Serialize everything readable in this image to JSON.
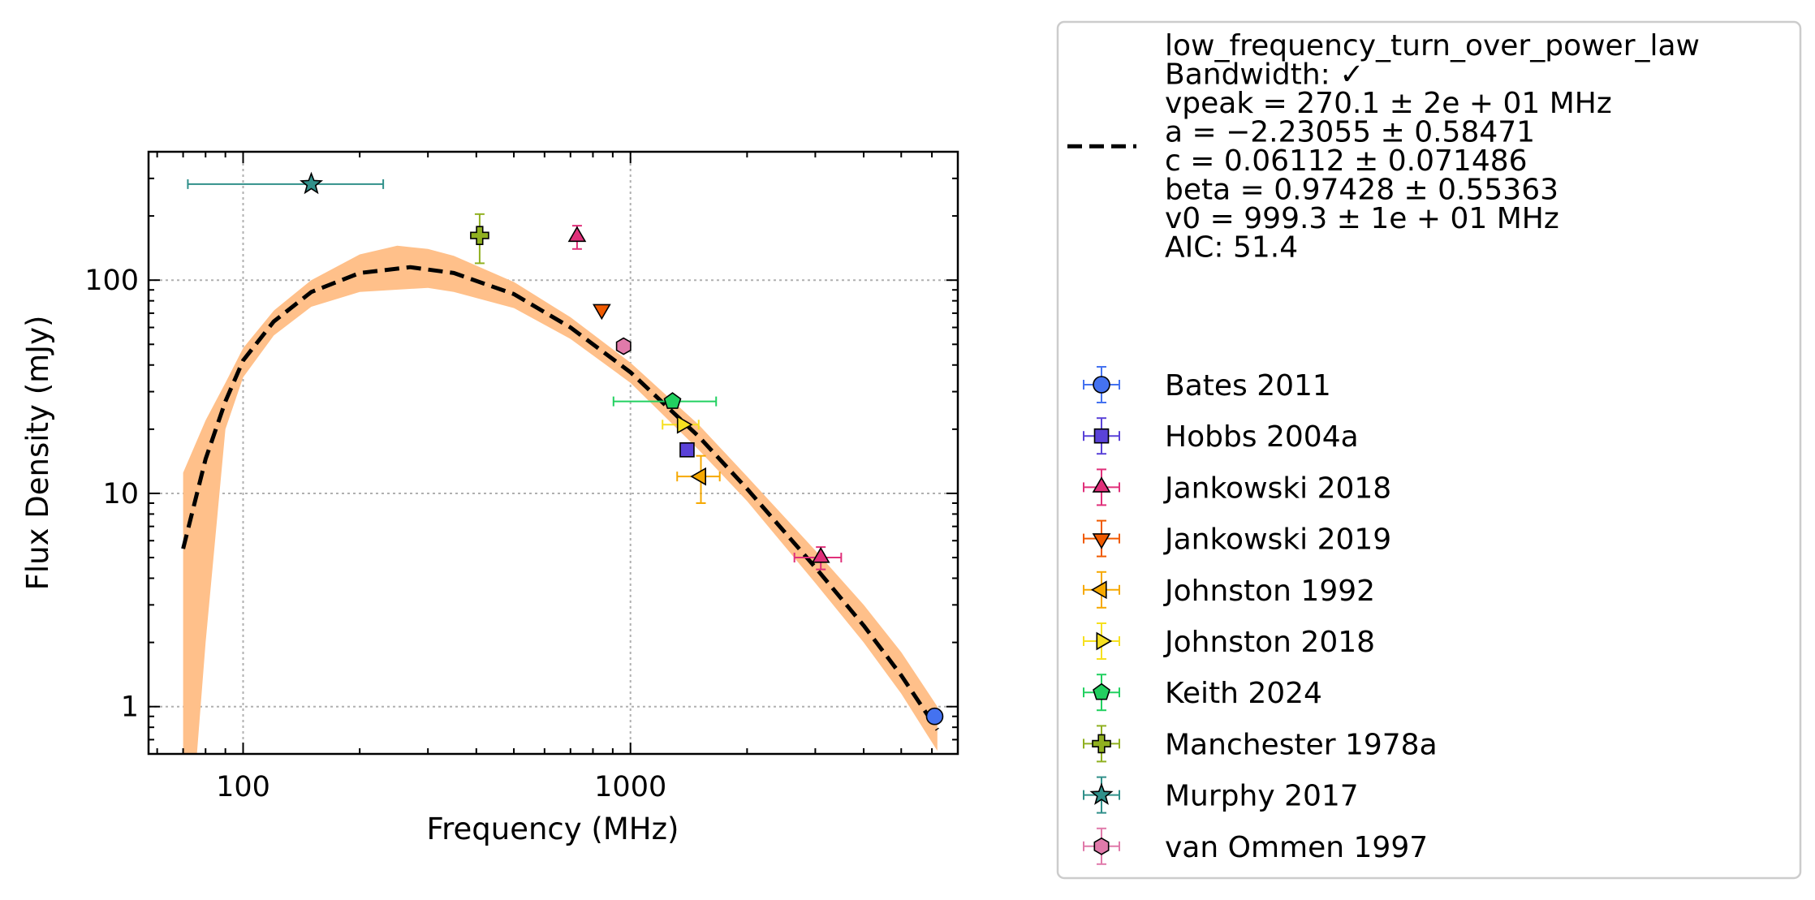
{
  "chart_data": {
    "type": "scatter",
    "xlabel": "Frequency (MHz)",
    "ylabel": "Flux Density (mJy)",
    "xscale": "log",
    "yscale": "log",
    "xlim": [
      57,
      7000
    ],
    "ylim": [
      0.6,
      400
    ],
    "grid": true,
    "legend_placement": "outside-right",
    "x_ticks": [
      {
        "value": 100,
        "label": "100"
      },
      {
        "value": 1000,
        "label": "1000"
      }
    ],
    "y_ticks": [
      {
        "value": 1,
        "label": "1"
      },
      {
        "value": 10,
        "label": "10"
      },
      {
        "value": 100,
        "label": "100"
      }
    ],
    "fit": {
      "model": "low_frequency_turn_over_power_law",
      "label_lines": [
        "low_frequency_turn_over_power_law",
        "Bandwidth: ✓",
        "vpeak = 270.1 ± 2e + 01 MHz",
        "a = −2.23055 ± 0.58471",
        "c = 0.06112 ± 0.071486",
        "beta = 0.97428 ± 0.55363",
        "v0 = 999.3 ± 1e + 01 MHz",
        "AIC: 51.4"
      ],
      "line_color": "#000000",
      "band_color": "#ffc08a",
      "curve": {
        "x": [
          70,
          80,
          90,
          100,
          120,
          150,
          200,
          270,
          350,
          500,
          700,
          1000,
          1500,
          2000,
          3000,
          4000,
          5000,
          6200
        ],
        "y": [
          5.5,
          14.5,
          27,
          42,
          64,
          88,
          108,
          115,
          108,
          86,
          60,
          37,
          18.5,
          10.5,
          4.5,
          2.4,
          1.4,
          0.78
        ]
      },
      "band_upper": {
        "x": [
          70,
          80,
          90,
          100,
          120,
          150,
          200,
          250,
          300,
          350,
          500,
          700,
          1000,
          1500,
          2000,
          3000,
          4000,
          5000,
          6200
        ],
        "y": [
          12.5,
          22,
          33,
          48,
          72,
          100,
          132,
          145,
          140,
          130,
          98,
          67,
          41,
          21,
          12,
          5.4,
          3.0,
          1.8,
          1.0
        ]
      },
      "band_lower": {
        "x": [
          70,
          73,
          76,
          80,
          90,
          100,
          120,
          150,
          200,
          300,
          350,
          500,
          700,
          1000,
          1500,
          2000,
          3000,
          4000,
          5000,
          6200
        ],
        "y": [
          0.6,
          0.6,
          0.6,
          2.0,
          20,
          35,
          55,
          75,
          88,
          92,
          88,
          74,
          53,
          33,
          16,
          9.2,
          3.8,
          2.0,
          1.15,
          0.62
        ]
      }
    },
    "series": [
      {
        "name": "Bates 2011",
        "marker": "circle",
        "color": "#4472f0",
        "points": [
          {
            "x": 6100,
            "y": 0.9,
            "xerr": [
              0,
              0
            ],
            "yerr": [
              0,
              0
            ]
          }
        ]
      },
      {
        "name": "Hobbs 2004a",
        "marker": "square",
        "color": "#5a42d8",
        "points": [
          {
            "x": 1400,
            "y": 16,
            "xerr": [
              0,
              0
            ],
            "yerr": [
              0,
              0
            ]
          }
        ]
      },
      {
        "name": "Jankowski 2018",
        "marker": "triangle-up",
        "color": "#e0307a",
        "points": [
          {
            "x": 728,
            "y": 160,
            "xerr": [
              0,
              0
            ],
            "yerr": [
              20,
              20
            ]
          },
          {
            "x": 3100,
            "y": 5,
            "xerr": [
              450,
              400
            ],
            "yerr": [
              0.6,
              0.6
            ]
          }
        ]
      },
      {
        "name": "Jankowski 2019",
        "marker": "triangle-down",
        "color": "#f05a00",
        "points": [
          {
            "x": 843,
            "y": 73,
            "xerr": [
              0,
              0
            ],
            "yerr": [
              0,
              0
            ]
          }
        ]
      },
      {
        "name": "Johnston 1992",
        "marker": "triangle-left",
        "color": "#f6a800",
        "points": [
          {
            "x": 1520,
            "y": 12,
            "xerr": [
              200,
              180
            ],
            "yerr": [
              3,
              3
            ]
          }
        ]
      },
      {
        "name": "Johnston 2018",
        "marker": "triangle-right",
        "color": "#f6e020",
        "points": [
          {
            "x": 1360,
            "y": 21,
            "xerr": [
              150,
              140
            ],
            "yerr": [
              0,
              0
            ]
          }
        ]
      },
      {
        "name": "Keith 2024",
        "marker": "pentagon",
        "color": "#22d060",
        "points": [
          {
            "x": 1284,
            "y": 27,
            "xerr": [
              380,
              380
            ],
            "yerr": [
              0,
              0
            ]
          }
        ]
      },
      {
        "name": "Manchester 1978a",
        "marker": "plus",
        "color": "#90b020",
        "points": [
          {
            "x": 408,
            "y": 162,
            "xerr": [
              0,
              0
            ],
            "yerr": [
              42,
              42
            ]
          }
        ]
      },
      {
        "name": "Murphy 2017",
        "marker": "star",
        "color": "#30908a",
        "points": [
          {
            "x": 150,
            "y": 282,
            "xerr": [
              78,
              80
            ],
            "yerr": [
              0,
              0
            ]
          }
        ]
      },
      {
        "name": "van Ommen 1997",
        "marker": "hexagon",
        "color": "#e07aaa",
        "points": [
          {
            "x": 960,
            "y": 49,
            "xerr": [
              0,
              0
            ],
            "yerr": [
              0,
              0
            ]
          }
        ]
      }
    ]
  }
}
